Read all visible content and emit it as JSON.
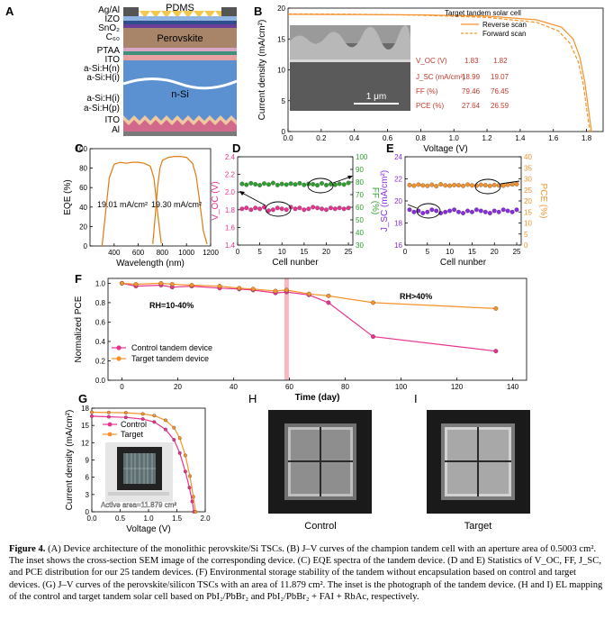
{
  "panels": {
    "A": {
      "letter": "A",
      "layers": [
        "Ag/Al",
        "IZO",
        "SnO₂",
        "C₆₀",
        "PTAA",
        "ITO",
        "a-Si:H(n)",
        "a-Si:H(i)",
        "a-Si:H(i)",
        "a-Si:H(p)",
        "ITO",
        "Al"
      ],
      "pdms_label": "PDMS",
      "perovskite_label": "Perovskite",
      "nsi_label": "n-Si"
    },
    "B": {
      "letter": "B",
      "legend_title": "Target tandem solar cell",
      "legend_reverse": "Reverse scan",
      "legend_forward": "Forward scan",
      "scale_bar": "1 μm",
      "table": [
        [
          "V_OC (V)",
          "1.83",
          "1.82"
        ],
        [
          "J_SC (mA/cm²)",
          "18.99",
          "19.07"
        ],
        [
          "FF (%)",
          "79.46",
          "76.45"
        ],
        [
          "PCE (%)",
          "27.64",
          "26.59"
        ]
      ]
    },
    "C": {
      "letter": "C",
      "ann1": "19.01 mA/cm²",
      "ann2": "19.30 mA/cm²"
    },
    "D": {
      "letter": "D"
    },
    "E": {
      "letter": "E"
    },
    "F": {
      "letter": "F",
      "rh_low": "RH=10-40%",
      "rh_high": "RH>40%",
      "legend_control": "Control tandem device",
      "legend_target": "Target tandem device"
    },
    "G": {
      "letter": "G",
      "legend_control": "Control",
      "legend_target": "Target",
      "inset_label": "Active area=11.879 cm²"
    },
    "H": {
      "letter": "H",
      "label": "Control"
    },
    "I": {
      "letter": "I",
      "label": "Target"
    }
  },
  "chart_data": [
    {
      "id": "B",
      "type": "line",
      "xlabel": "Voltage (V)",
      "ylabel": "Current density (mA/cm²)",
      "xlim": [
        0.0,
        1.9
      ],
      "ylim": [
        0,
        20
      ],
      "xticks": [
        "0.0",
        "0.2",
        "0.4",
        "0.6",
        "0.8",
        "1.0",
        "1.2",
        "1.4",
        "1.6",
        "1.8"
      ],
      "yticks": [
        "0",
        "5",
        "10",
        "15",
        "20"
      ],
      "series": [
        {
          "name": "Reverse scan",
          "x": [
            0,
            0.4,
            0.8,
            1.2,
            1.5,
            1.65,
            1.72,
            1.76,
            1.79,
            1.81,
            1.83
          ],
          "y": [
            18.99,
            18.95,
            18.9,
            18.7,
            18.1,
            16.9,
            15.0,
            12.0,
            8.0,
            4.0,
            0
          ]
        },
        {
          "name": "Forward scan",
          "x": [
            0,
            0.4,
            0.8,
            1.2,
            1.5,
            1.63,
            1.7,
            1.75,
            1.78,
            1.8,
            1.82
          ],
          "y": [
            19.07,
            19.0,
            18.85,
            18.5,
            17.7,
            16.3,
            14.3,
            11.3,
            7.7,
            3.8,
            0
          ]
        }
      ]
    },
    {
      "id": "C",
      "type": "line",
      "xlabel": "Wavelength (nm)",
      "ylabel": "EQE (%)",
      "xlim": [
        200,
        1200
      ],
      "ylim": [
        0,
        100
      ],
      "xticks": [
        "400",
        "600",
        "800",
        "1000",
        "1200"
      ],
      "yticks": [
        "0",
        "20",
        "40",
        "60",
        "80",
        "100"
      ],
      "series": [
        {
          "name": "perovskite",
          "x": [
            300,
            330,
            360,
            400,
            450,
            500,
            550,
            600,
            650,
            700,
            730,
            760,
            790
          ],
          "y": [
            0,
            35,
            70,
            84,
            86,
            85,
            86,
            86,
            85,
            82,
            70,
            35,
            3
          ]
        },
        {
          "name": "silicon",
          "x": [
            720,
            740,
            760,
            780,
            800,
            850,
            900,
            950,
            1000,
            1050,
            1080,
            1110,
            1140,
            1170
          ],
          "y": [
            2,
            30,
            60,
            80,
            88,
            91,
            92,
            92,
            91,
            85,
            72,
            45,
            15,
            2
          ]
        }
      ]
    },
    {
      "id": "D",
      "type": "scatter",
      "xlabel": "Cell nunber",
      "ylabel": "V_OC (V)",
      "ylabel2": "FF (%)",
      "xlim": [
        0,
        26
      ],
      "ylim": [
        1.4,
        2.4
      ],
      "ylim2": [
        30,
        100
      ],
      "xticks": [
        "0",
        "5",
        "10",
        "15",
        "20",
        "25"
      ],
      "yticks": [
        "1.4",
        "1.6",
        "1.8",
        "2.0",
        "2.2",
        "2.4"
      ],
      "yticks2": [
        "30",
        "40",
        "50",
        "60",
        "70",
        "80",
        "90",
        "100"
      ],
      "series": [
        {
          "name": "VOC",
          "axis": "left",
          "x": [
            1,
            2,
            3,
            4,
            5,
            6,
            7,
            8,
            9,
            10,
            11,
            12,
            13,
            14,
            15,
            16,
            17,
            18,
            19,
            20,
            21,
            22,
            23,
            24,
            25
          ],
          "y": [
            1.81,
            1.82,
            1.8,
            1.82,
            1.81,
            1.83,
            1.79,
            1.8,
            1.82,
            1.81,
            1.8,
            1.83,
            1.81,
            1.82,
            1.8,
            1.81,
            1.83,
            1.82,
            1.81,
            1.8,
            1.82,
            1.81,
            1.82,
            1.81,
            1.82
          ]
        },
        {
          "name": "FF",
          "axis": "right",
          "x": [
            1,
            2,
            3,
            4,
            5,
            6,
            7,
            8,
            9,
            10,
            11,
            12,
            13,
            14,
            15,
            16,
            17,
            18,
            19,
            20,
            21,
            22,
            23,
            24,
            25
          ],
          "y": [
            78.5,
            77.8,
            79.0,
            78.2,
            77.5,
            78.8,
            78.0,
            79.2,
            77.6,
            78.4,
            77.9,
            78.7,
            78.1,
            79.0,
            77.7,
            78.5,
            78.2,
            77.4,
            78.9,
            77.6,
            78.3,
            77.8,
            78.6,
            78.0,
            79.3
          ]
        }
      ]
    },
    {
      "id": "E",
      "type": "scatter",
      "xlabel": "Cell nunber",
      "ylabel": "J_SC (mA/cm²)",
      "ylabel2": "PCE (%)",
      "xlim": [
        0,
        26
      ],
      "ylim": [
        16,
        24
      ],
      "ylim2": [
        0,
        40
      ],
      "xticks": [
        "0",
        "5",
        "10",
        "15",
        "20",
        "25"
      ],
      "yticks": [
        "16",
        "18",
        "20",
        "22",
        "24"
      ],
      "yticks2": [
        "0",
        "5",
        "10",
        "15",
        "20",
        "25",
        "30",
        "35",
        "40"
      ],
      "series": [
        {
          "name": "JSC",
          "axis": "left",
          "x": [
            1,
            2,
            3,
            4,
            5,
            6,
            7,
            8,
            9,
            10,
            11,
            12,
            13,
            14,
            15,
            16,
            17,
            18,
            19,
            20,
            21,
            22,
            23,
            24,
            25
          ],
          "y": [
            19.2,
            19.0,
            19.1,
            18.9,
            19.0,
            19.2,
            19.1,
            18.9,
            19.0,
            19.1,
            19.2,
            19.0,
            18.9,
            19.1,
            19.0,
            19.2,
            19.1,
            19.0,
            18.9,
            19.1,
            19.0,
            19.2,
            19.1,
            19.0,
            19.2
          ]
        },
        {
          "name": "PCE",
          "axis": "right",
          "x": [
            1,
            2,
            3,
            4,
            5,
            6,
            7,
            8,
            9,
            10,
            11,
            12,
            13,
            14,
            15,
            16,
            17,
            18,
            19,
            20,
            21,
            22,
            23,
            24,
            25
          ],
          "y": [
            27.2,
            26.9,
            27.4,
            27.0,
            26.8,
            27.3,
            26.7,
            27.5,
            27.0,
            26.9,
            27.2,
            27.1,
            26.8,
            27.4,
            27.0,
            26.9,
            27.3,
            27.1,
            26.8,
            27.2,
            27.0,
            26.9,
            27.3,
            27.5,
            27.6
          ]
        }
      ]
    },
    {
      "id": "F",
      "type": "line",
      "xlabel": "Time (day)",
      "ylabel": "Normalized PCE",
      "xlim": [
        -5,
        145
      ],
      "ylim": [
        0.0,
        1.05
      ],
      "xticks": [
        "0",
        "20",
        "40",
        "60",
        "80",
        "100",
        "120",
        "140"
      ],
      "yticks": [
        "0.0",
        "0.2",
        "0.4",
        "0.6",
        "0.8",
        "1.0"
      ],
      "shaded_x": 59,
      "series": [
        {
          "name": "Control tandem device",
          "x": [
            0,
            5,
            14,
            18,
            25,
            35,
            42,
            47,
            55,
            59,
            67,
            74,
            90,
            134
          ],
          "y": [
            1.0,
            0.97,
            0.98,
            0.96,
            0.97,
            0.95,
            0.94,
            0.93,
            0.9,
            0.91,
            0.88,
            0.8,
            0.45,
            0.3
          ]
        },
        {
          "name": "Target tandem device",
          "x": [
            0,
            5,
            14,
            18,
            25,
            35,
            42,
            47,
            55,
            59,
            67,
            74,
            90,
            134
          ],
          "y": [
            1.0,
            0.99,
            1.0,
            0.99,
            0.98,
            0.97,
            0.95,
            0.94,
            0.92,
            0.93,
            0.89,
            0.87,
            0.8,
            0.74
          ]
        }
      ]
    },
    {
      "id": "G",
      "type": "line",
      "xlabel": "Voltage (V)",
      "ylabel": "Current density (mA/cm²)",
      "xlim": [
        0.0,
        2.0
      ],
      "ylim": [
        0,
        18
      ],
      "xticks": [
        "0.0",
        "0.5",
        "1.0",
        "1.5",
        "2.0"
      ],
      "yticks": [
        "0",
        "3",
        "6",
        "9",
        "12",
        "15",
        "18"
      ],
      "series": [
        {
          "name": "Control",
          "x": [
            0,
            0.3,
            0.6,
            0.9,
            1.1,
            1.3,
            1.45,
            1.55,
            1.65,
            1.72,
            1.77,
            1.8
          ],
          "y": [
            16.6,
            16.5,
            16.4,
            16.1,
            15.6,
            14.3,
            12.5,
            10.2,
            7.0,
            4.2,
            1.8,
            0
          ]
        },
        {
          "name": "Target",
          "x": [
            0,
            0.3,
            0.6,
            0.9,
            1.1,
            1.3,
            1.45,
            1.55,
            1.65,
            1.73,
            1.79,
            1.83
          ],
          "y": [
            17.3,
            17.25,
            17.2,
            17.0,
            16.7,
            15.9,
            14.6,
            12.8,
            9.8,
            6.2,
            2.6,
            0
          ]
        }
      ]
    }
  ],
  "caption": {
    "label": "Figure 4.",
    "text": "(A) Device architecture of the monolithic perovskite/Si TSCs. (B) J–V curves of the champion tandem cell with an aperture area of 0.5003 cm². The inset shows the cross-section SEM image of the corresponding device. (C) EQE spectra of the tandem device. (D and E) Statistics of V_OC, FF, J_SC, and PCE distribution for our 25 tandem devices. (F) Environmental storage stability of the tandem without encapsulation based on control and target devices. (G) J–V curves of the perovskite/silicon TSCs with an area of 11.879 cm². The inset is the photograph of the tandem device. (H and I) EL mapping of the control and target tandem solar cell based on PbI₂/PbBr₂ and PbI₂/PbBr₂ + FAI + RbAc, respectively."
  },
  "colors": {
    "orange": "#f5922a",
    "pink": "#e8328f",
    "green": "#2ca02c",
    "purple": "#8a2be2",
    "orange_dark": "#e07a10"
  }
}
